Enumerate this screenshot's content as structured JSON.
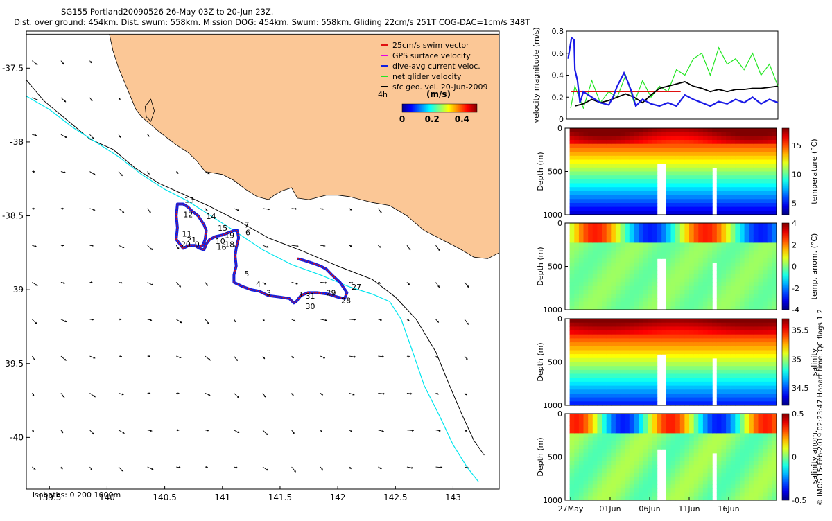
{
  "header": {
    "line1": "SG155 Portland20090526 26-May 03Z to 20-Jun 23Z.",
    "line2": "Dist. over ground: 454km. Dist. swum: 558km. Mission DOG: 454km. Swum: 558km. Gliding 22cm/s 251T COG-DAC=1cm/s 348T"
  },
  "credit": "© IMOS 15-Feb-2019 02:23:47 Hobart time. QC flags 1  2",
  "colors": {
    "land": "#FBC796",
    "glider_track": "#1020E0",
    "swim_vector": "#E01010",
    "isobath_0": "#000000",
    "isobath_200": "#00E5EE",
    "isobath_1000": "#000000",
    "velocity_line": "#1A1AE6",
    "net_velocity": "#22E622",
    "geo_velocity": "#000000",
    "gps_velocity": "#E600E6",
    "swim_speed": "#E01010"
  },
  "chart_data": [
    {
      "type": "scatter",
      "name": "track_map",
      "xlim": [
        139.3,
        143.4
      ],
      "ylim": [
        -40.35,
        -37.25
      ],
      "xticks": [
        139.5,
        140,
        140.5,
        141,
        141.5,
        142,
        142.5,
        143
      ],
      "xtick_labels": [
        "139.5",
        "140",
        "140.5",
        "141",
        "141.5",
        "142",
        "142.5",
        "143"
      ],
      "yticks": [
        -37.5,
        -38,
        -38.5,
        -39,
        -39.5,
        -40
      ],
      "ytick_labels": [
        "-37.5",
        "-38",
        "-38.5",
        "-39",
        "-39.5",
        "-40"
      ],
      "legend": {
        "position": "top-right",
        "entries": [
          "25cm/s swim vector",
          "GPS surface velocity",
          "dive-avg current veloc.",
          "net glider velocity",
          "sfc geo. vel. 20-Jun-2009"
        ]
      },
      "colorbar": {
        "label": "(m/s)",
        "time_label": "4h",
        "range": [
          0,
          0.5
        ],
        "tick_labels": [
          "0",
          "0.2",
          "0.4"
        ],
        "ticks": [
          0,
          0.2,
          0.4
        ]
      },
      "isobath_label": "isobaths: 0   200   1000m",
      "coastline": [
        [
          139.3,
          -37.27
        ],
        [
          140.02,
          -37.27
        ],
        [
          143.4,
          -37.27
        ],
        [
          143.4,
          -38.75
        ],
        [
          143.3,
          -38.79
        ],
        [
          143.18,
          -38.78
        ],
        [
          143.05,
          -38.72
        ],
        [
          142.9,
          -38.66
        ],
        [
          142.75,
          -38.6
        ],
        [
          142.6,
          -38.5
        ],
        [
          142.45,
          -38.43
        ],
        [
          142.3,
          -38.41
        ],
        [
          142.2,
          -38.39
        ],
        [
          142.1,
          -38.37
        ],
        [
          142.0,
          -38.36
        ],
        [
          141.9,
          -38.36
        ],
        [
          141.75,
          -38.39
        ],
        [
          141.65,
          -38.38
        ],
        [
          141.6,
          -38.31
        ],
        [
          141.52,
          -38.33
        ],
        [
          141.45,
          -38.36
        ],
        [
          141.4,
          -38.39
        ],
        [
          141.3,
          -38.37
        ],
        [
          141.2,
          -38.32
        ],
        [
          141.1,
          -38.26
        ],
        [
          141.0,
          -38.22
        ],
        [
          140.85,
          -38.2
        ],
        [
          140.78,
          -38.13
        ],
        [
          140.7,
          -38.07
        ],
        [
          140.6,
          -38.02
        ],
        [
          140.45,
          -37.93
        ],
        [
          140.3,
          -37.83
        ],
        [
          140.25,
          -37.78
        ],
        [
          140.17,
          -37.63
        ],
        [
          140.1,
          -37.5
        ],
        [
          140.05,
          -37.38
        ],
        [
          140.02,
          -37.27
        ]
      ],
      "island": [
        [
          140.33,
          -37.76
        ],
        [
          140.38,
          -37.71
        ],
        [
          140.41,
          -37.79
        ],
        [
          140.38,
          -37.86
        ],
        [
          140.34,
          -37.83
        ]
      ],
      "isobath_1000m": [
        [
          139.3,
          -37.58
        ],
        [
          139.45,
          -37.72
        ],
        [
          139.65,
          -37.85
        ],
        [
          139.85,
          -37.98
        ],
        [
          140.05,
          -38.05
        ],
        [
          140.25,
          -38.18
        ],
        [
          140.45,
          -38.28
        ],
        [
          140.65,
          -38.35
        ],
        [
          140.9,
          -38.44
        ],
        [
          141.15,
          -38.54
        ],
        [
          141.4,
          -38.65
        ],
        [
          141.7,
          -38.74
        ],
        [
          142.0,
          -38.84
        ],
        [
          142.3,
          -38.93
        ],
        [
          142.5,
          -39.05
        ],
        [
          142.68,
          -39.2
        ],
        [
          142.85,
          -39.42
        ],
        [
          142.97,
          -39.65
        ],
        [
          143.08,
          -39.85
        ],
        [
          143.18,
          -40.02
        ],
        [
          143.27,
          -40.12
        ]
      ],
      "isobath_200m": [
        [
          139.3,
          -37.69
        ],
        [
          139.5,
          -37.78
        ],
        [
          139.7,
          -37.9
        ],
        [
          139.9,
          -38.0
        ],
        [
          140.1,
          -38.1
        ],
        [
          140.3,
          -38.22
        ],
        [
          140.5,
          -38.32
        ],
        [
          140.7,
          -38.4
        ],
        [
          140.9,
          -38.5
        ],
        [
          141.1,
          -38.6
        ],
        [
          141.35,
          -38.73
        ],
        [
          141.6,
          -38.83
        ],
        [
          141.85,
          -38.9
        ],
        [
          142.1,
          -38.98
        ],
        [
          142.3,
          -39.03
        ],
        [
          142.45,
          -39.08
        ],
        [
          142.55,
          -39.2
        ],
        [
          142.65,
          -39.42
        ],
        [
          142.75,
          -39.65
        ],
        [
          142.88,
          -39.85
        ],
        [
          143.0,
          -40.05
        ],
        [
          143.12,
          -40.2
        ],
        [
          143.22,
          -40.3
        ]
      ],
      "track": [
        [
          141.65,
          -38.79
        ],
        [
          141.7,
          -38.8
        ],
        [
          141.78,
          -38.82
        ],
        [
          141.85,
          -38.84
        ],
        [
          141.9,
          -38.86
        ],
        [
          141.95,
          -38.9
        ],
        [
          142.02,
          -38.95
        ],
        [
          142.08,
          -39.02
        ],
        [
          142.06,
          -39.06
        ],
        [
          142.0,
          -39.05
        ],
        [
          141.92,
          -39.03
        ],
        [
          141.82,
          -39.02
        ],
        [
          141.74,
          -39.02
        ],
        [
          141.68,
          -39.04
        ],
        [
          141.64,
          -39.08
        ],
        [
          141.62,
          -39.09
        ],
        [
          141.58,
          -39.06
        ],
        [
          141.5,
          -39.05
        ],
        [
          141.4,
          -39.04
        ],
        [
          141.32,
          -39.01
        ],
        [
          141.25,
          -39.0
        ],
        [
          141.18,
          -38.98
        ],
        [
          141.1,
          -38.95
        ],
        [
          141.1,
          -38.9
        ],
        [
          141.12,
          -38.84
        ],
        [
          141.11,
          -38.77
        ],
        [
          141.12,
          -38.72
        ],
        [
          141.14,
          -38.65
        ],
        [
          141.13,
          -38.6
        ],
        [
          141.1,
          -38.6
        ],
        [
          141.0,
          -38.63
        ],
        [
          140.94,
          -38.64
        ],
        [
          140.89,
          -38.66
        ],
        [
          140.86,
          -38.69
        ],
        [
          140.84,
          -38.73
        ],
        [
          140.8,
          -38.72
        ],
        [
          140.76,
          -38.7
        ],
        [
          140.71,
          -38.7
        ],
        [
          140.66,
          -38.72
        ],
        [
          140.6,
          -38.66
        ],
        [
          140.61,
          -38.58
        ],
        [
          140.6,
          -38.5
        ],
        [
          140.61,
          -38.42
        ],
        [
          140.66,
          -38.42
        ],
        [
          140.7,
          -38.44
        ],
        [
          140.74,
          -38.47
        ],
        [
          140.79,
          -38.5
        ],
        [
          140.84,
          -38.56
        ],
        [
          140.86,
          -38.6
        ],
        [
          140.85,
          -38.66
        ],
        [
          140.83,
          -38.7
        ],
        [
          140.79,
          -38.71
        ]
      ],
      "track_labels": [
        {
          "text": "13",
          "lon": 140.67,
          "lat": -38.41
        },
        {
          "text": "14",
          "lon": 140.86,
          "lat": -38.52
        },
        {
          "text": "12",
          "lon": 140.66,
          "lat": -38.51
        },
        {
          "text": "15",
          "lon": 140.96,
          "lat": -38.6
        },
        {
          "text": "7",
          "lon": 141.19,
          "lat": -38.58
        },
        {
          "text": "6",
          "lon": 141.2,
          "lat": -38.63
        },
        {
          "text": "11",
          "lon": 140.65,
          "lat": -38.64
        },
        {
          "text": "19",
          "lon": 141.02,
          "lat": -38.65
        },
        {
          "text": "21",
          "lon": 140.69,
          "lat": -38.68
        },
        {
          "text": "20",
          "lon": 140.64,
          "lat": -38.71
        },
        {
          "text": "9",
          "lon": 140.76,
          "lat": -38.71
        },
        {
          "text": "10",
          "lon": 140.94,
          "lat": -38.69
        },
        {
          "text": "18",
          "lon": 141.02,
          "lat": -38.71
        },
        {
          "text": "16",
          "lon": 140.95,
          "lat": -38.73
        },
        {
          "text": "5",
          "lon": 141.19,
          "lat": -38.91
        },
        {
          "text": "4",
          "lon": 141.29,
          "lat": -38.98
        },
        {
          "text": "3",
          "lon": 141.38,
          "lat": -39.04
        },
        {
          "text": "1",
          "lon": 141.66,
          "lat": -39.05
        },
        {
          "text": "31",
          "lon": 141.72,
          "lat": -39.06
        },
        {
          "text": "29",
          "lon": 141.9,
          "lat": -39.04
        },
        {
          "text": "27",
          "lon": 142.12,
          "lat": -39.0
        },
        {
          "text": "28",
          "lon": 142.03,
          "lat": -39.09
        },
        {
          "text": "30",
          "lon": 141.72,
          "lat": -39.13
        }
      ]
    },
    {
      "type": "line",
      "name": "velocity_timeseries",
      "ylabel": "velocity magnitude (m/s)",
      "xlim": [
        0,
        25
      ],
      "ylim": [
        0,
        0.8
      ],
      "yticks": [
        0,
        0.2,
        0.4,
        0.6,
        0.8
      ],
      "ytick_labels": [
        "0",
        "0.2",
        "0.4",
        "0.6",
        "0.8"
      ],
      "series": [
        {
          "key": "dac",
          "x": [
            0.2,
            0.6,
            0.9,
            1.0,
            1.3,
            1.6,
            2.0,
            3.0,
            4.0,
            5.0,
            5.5,
            6.0,
            6.8,
            7.2,
            7.7,
            8.2,
            9.0,
            10.0,
            11.0,
            12.0,
            13.0,
            14.0,
            15.0,
            16.0,
            17.0,
            18.0,
            19.0,
            20.0,
            21.0,
            22.0,
            23.0,
            24.0,
            25.0
          ],
          "y": [
            0.55,
            0.74,
            0.72,
            0.45,
            0.35,
            0.15,
            0.25,
            0.2,
            0.15,
            0.13,
            0.2,
            0.3,
            0.42,
            0.35,
            0.25,
            0.12,
            0.18,
            0.14,
            0.12,
            0.15,
            0.12,
            0.22,
            0.18,
            0.15,
            0.12,
            0.16,
            0.14,
            0.18,
            0.15,
            0.2,
            0.14,
            0.18,
            0.15
          ]
        },
        {
          "key": "net",
          "x": [
            0.5,
            1.0,
            1.5,
            2.0,
            3.0,
            4.0,
            5.0,
            6.0,
            7.0,
            8.0,
            9.0,
            10.0,
            11.0,
            12.0,
            13.0,
            14.0,
            15.0,
            16.0,
            17.0,
            18.0,
            19.0,
            20.0,
            21.0,
            22.0,
            23.0,
            24.0,
            25.0
          ],
          "y": [
            0.1,
            0.3,
            0.2,
            0.1,
            0.35,
            0.15,
            0.25,
            0.2,
            0.4,
            0.15,
            0.35,
            0.2,
            0.3,
            0.25,
            0.45,
            0.4,
            0.55,
            0.6,
            0.4,
            0.65,
            0.5,
            0.55,
            0.45,
            0.6,
            0.4,
            0.5,
            0.3
          ]
        },
        {
          "key": "geo",
          "x": [
            1.0,
            2.0,
            3.0,
            4.0,
            5.0,
            6.0,
            7.0,
            8.0,
            9.0,
            10.0,
            11.0,
            12.0,
            13.0,
            14.0,
            15.0,
            16.0,
            17.0,
            18.0,
            19.0,
            20.0,
            21.0,
            22.0,
            23.0,
            24.0,
            25.0
          ],
          "y": [
            0.12,
            0.14,
            0.18,
            0.15,
            0.17,
            0.2,
            0.23,
            0.2,
            0.15,
            0.22,
            0.28,
            0.3,
            0.32,
            0.34,
            0.3,
            0.28,
            0.25,
            0.27,
            0.25,
            0.27,
            0.27,
            0.28,
            0.28,
            0.29,
            0.3
          ]
        },
        {
          "key": "swim",
          "x": [
            0.5,
            13.5
          ],
          "y": [
            0.25,
            0.25
          ]
        }
      ]
    },
    {
      "type": "heatmap",
      "name": "temperature_section",
      "ylabel": "Depth (m)",
      "colorbar_label": "temperature (°C)",
      "ylim": [
        1000,
        0
      ],
      "yticks": [
        0,
        500,
        1000
      ],
      "ytick_labels": [
        "0",
        "500",
        "1000"
      ],
      "cticks": [
        5,
        10,
        15
      ],
      "ctick_labels": [
        "5",
        "10",
        "15"
      ],
      "clim": [
        3,
        18
      ]
    },
    {
      "type": "heatmap",
      "name": "temperature_anomaly_section",
      "ylabel": "Depth (m)",
      "colorbar_label": "temp. anom. (°C)",
      "ylim": [
        1000,
        0
      ],
      "yticks": [
        0,
        500,
        1000
      ],
      "ytick_labels": [
        "0",
        "500",
        "1000"
      ],
      "cticks": [
        -4,
        -2,
        0,
        2,
        4
      ],
      "ctick_labels": [
        "-4",
        "-2",
        "0",
        "2",
        "4"
      ],
      "clim": [
        -4,
        4
      ]
    },
    {
      "type": "heatmap",
      "name": "salinity_section",
      "ylabel": "Depth (m)",
      "colorbar_label": "salinity",
      "ylim": [
        1000,
        0
      ],
      "yticks": [
        0,
        500,
        1000
      ],
      "ytick_labels": [
        "0",
        "500",
        "1000"
      ],
      "cticks": [
        34.5,
        35,
        35.5
      ],
      "ctick_labels": [
        "34.5",
        "35",
        "35.5"
      ],
      "clim": [
        34.2,
        35.7
      ]
    },
    {
      "type": "heatmap",
      "name": "salinity_anomaly_section",
      "ylabel": "Depth (m)",
      "colorbar_label": "salinity anom.",
      "ylim": [
        1000,
        0
      ],
      "yticks": [
        0,
        500,
        1000
      ],
      "ytick_labels": [
        "0",
        "500",
        "1000"
      ],
      "cticks": [
        -0.5,
        0,
        0.5
      ],
      "ctick_labels": [
        "-0.5",
        "0",
        "0.5"
      ],
      "clim": [
        -0.5,
        0.5
      ],
      "xtick_labels": [
        "27May",
        "01Jun",
        "06Jun",
        "11Jun",
        "16Jun"
      ]
    }
  ]
}
